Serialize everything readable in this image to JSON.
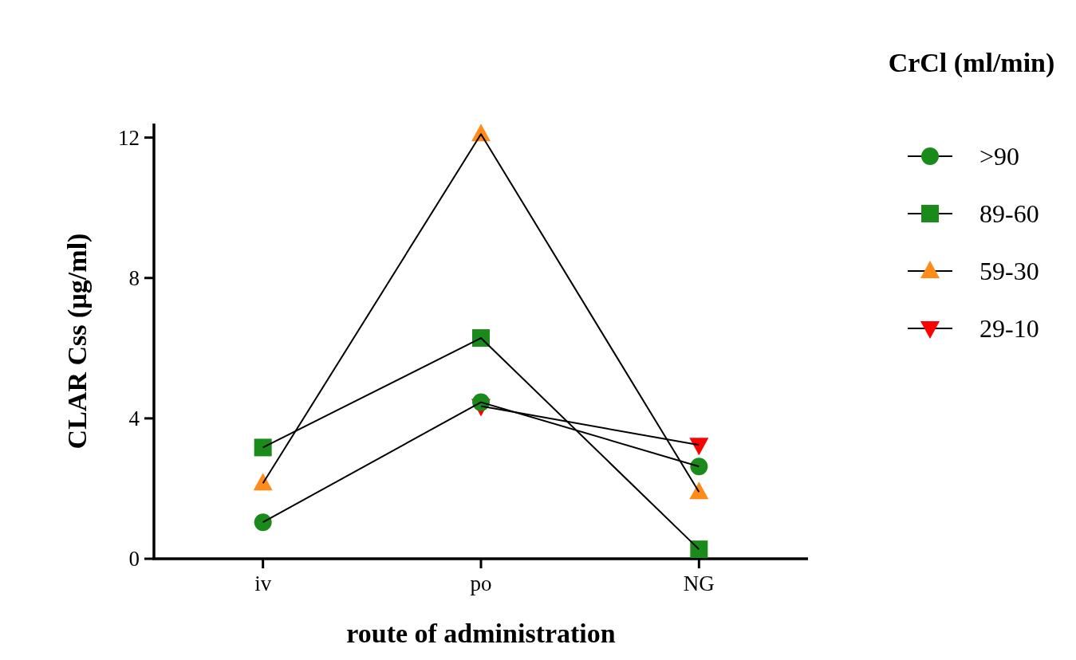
{
  "chart_data": {
    "type": "line",
    "xlabel": "route of administration",
    "ylabel": "CLAR Css (µg/ml)",
    "legend_title": "CrCl (ml/min)",
    "categories": [
      "iv",
      "po",
      "NG"
    ],
    "ylim": [
      0,
      12.4
    ],
    "yticks": [
      0,
      4,
      8,
      12
    ],
    "grid": false,
    "legend": "right",
    "series": [
      {
        "name": ">90",
        "color": "#1a8a1a",
        "marker": "circle",
        "values": [
          1.04,
          4.46,
          2.63
        ]
      },
      {
        "name": "89-60",
        "color": "#1a8a1a",
        "marker": "square",
        "values": [
          3.17,
          6.29,
          0.27
        ]
      },
      {
        "name": "59-30",
        "color": "#ff8c1a",
        "marker": "triangle",
        "values": [
          2.15,
          12.1,
          1.9
        ]
      },
      {
        "name": "29-10",
        "color": "#ff0000",
        "marker": "triangle-down",
        "values": [
          null,
          4.35,
          3.24
        ]
      }
    ]
  }
}
